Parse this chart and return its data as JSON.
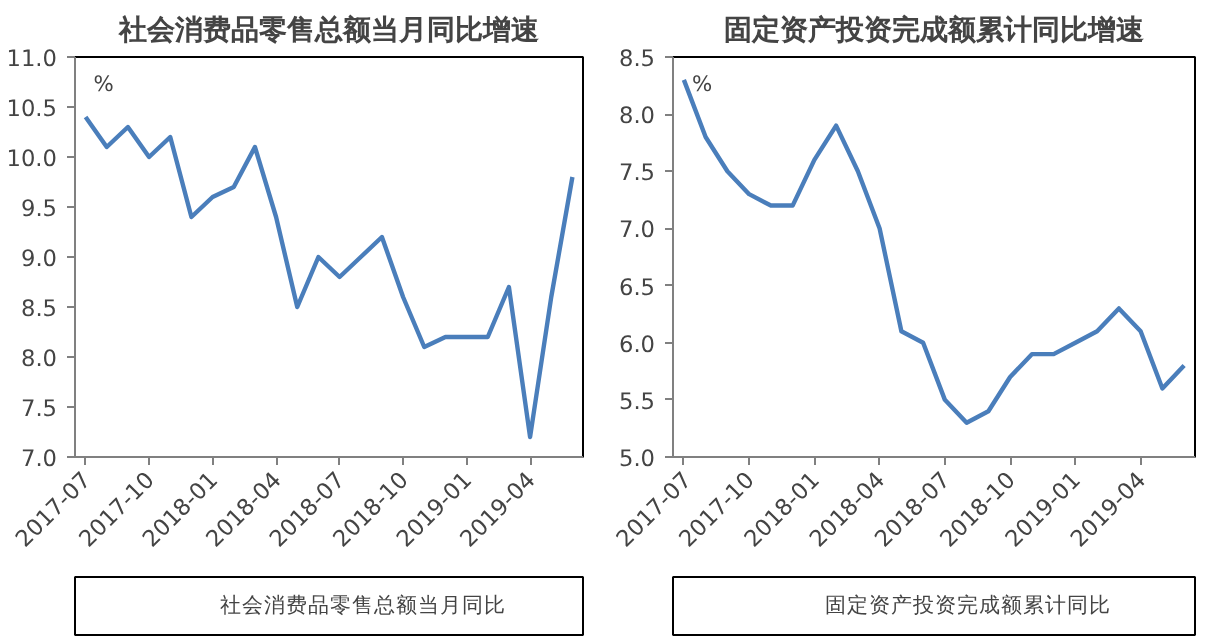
{
  "chart_data": [
    {
      "type": "line",
      "title": "社会消费品零售总额当月同比增速",
      "ylabel": "%",
      "categories": [
        "2017-07",
        null,
        null,
        "2017-10",
        null,
        null,
        "2018-01",
        null,
        null,
        "2018-04",
        null,
        null,
        "2018-07",
        null,
        null,
        "2018-10",
        null,
        null,
        "2019-01",
        null,
        null,
        "2019-04",
        null,
        null
      ],
      "series": [
        {
          "name": "社会消费品零售总额当月同比",
          "color": "#4a7ebb",
          "values": [
            10.4,
            10.1,
            10.3,
            10.0,
            10.2,
            9.4,
            9.6,
            9.7,
            10.1,
            9.4,
            8.5,
            9.0,
            8.8,
            9.0,
            9.2,
            8.6,
            8.1,
            8.2,
            8.2,
            8.2,
            8.7,
            7.2,
            8.6,
            9.8
          ]
        }
      ],
      "ylim": [
        7.0,
        11.0
      ],
      "yticks": [
        {
          "value": 7,
          "label": "7.0"
        },
        {
          "value": 7.5,
          "label": "7.5"
        },
        {
          "value": 8,
          "label": "8.0"
        },
        {
          "value": 8.5,
          "label": "8.5"
        },
        {
          "value": 9,
          "label": "9.0"
        },
        {
          "value": 9.5,
          "label": "9.5"
        },
        {
          "value": 10,
          "label": "10.0"
        },
        {
          "value": 10.5,
          "label": "10.5"
        },
        {
          "value": 11,
          "label": "11.0"
        }
      ],
      "grid": false,
      "legend": "bottom",
      "marker": "none",
      "line_style": "solid"
    },
    {
      "type": "line",
      "title": "固定资产投资完成额累计同比增速",
      "ylabel": "%",
      "categories": [
        "2017-07",
        null,
        null,
        "2017-10",
        null,
        null,
        "2018-01",
        null,
        null,
        "2018-04",
        null,
        null,
        "2018-07",
        null,
        null,
        "2018-10",
        null,
        null,
        "2019-01",
        null,
        null,
        "2019-04",
        null,
        null
      ],
      "series": [
        {
          "name": "固定资产投资完成额累计同比",
          "color": "#4a7ebb",
          "values": [
            8.3,
            7.8,
            7.5,
            7.3,
            7.2,
            7.2,
            7.6,
            7.9,
            7.5,
            7.0,
            6.1,
            6.0,
            5.5,
            5.3,
            5.4,
            5.7,
            5.9,
            5.9,
            6.0,
            6.1,
            6.3,
            6.1,
            5.6,
            5.8
          ]
        }
      ],
      "ylim": [
        5.0,
        8.5
      ],
      "yticks": [
        {
          "value": 5,
          "label": "5.0"
        },
        {
          "value": 5.5,
          "label": "5.5"
        },
        {
          "value": 6,
          "label": "6.0"
        },
        {
          "value": 6.5,
          "label": "6.5"
        },
        {
          "value": 7,
          "label": "7.0"
        },
        {
          "value": 7.5,
          "label": "7.5"
        },
        {
          "value": 8,
          "label": "8.0"
        },
        {
          "value": 8.5,
          "label": "8.5"
        }
      ],
      "grid": false,
      "legend": "bottom",
      "marker": "none",
      "line_style": "solid"
    }
  ]
}
